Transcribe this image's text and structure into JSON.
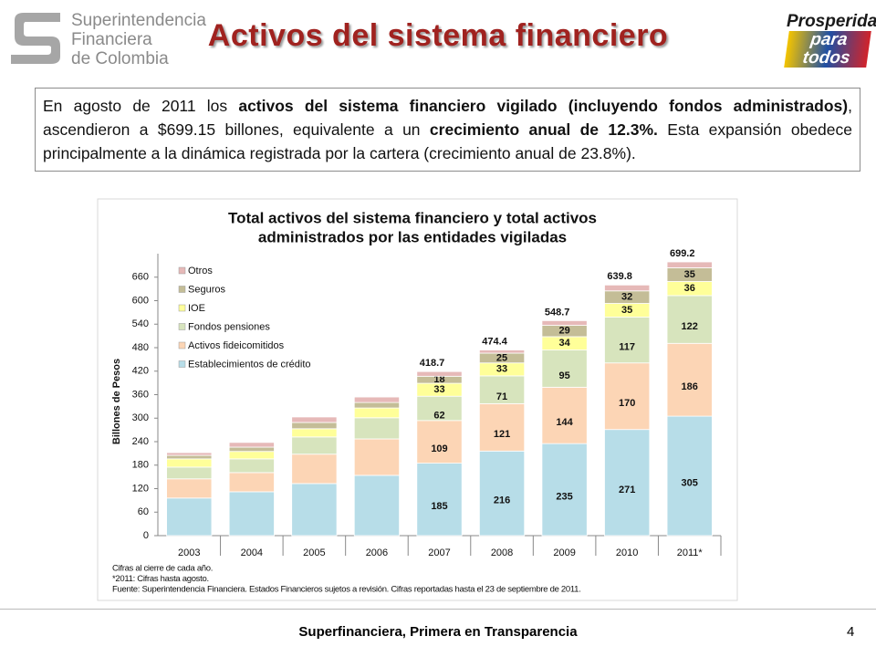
{
  "header": {
    "logo_lines": [
      "Superintendencia",
      "Financiera",
      "de Colombia"
    ],
    "title": "Activos del sistema financiero",
    "badge_lines": [
      "Prosperidad",
      "para todos"
    ]
  },
  "paragraph": [
    {
      "text": "En agosto de 2011 los ",
      "bold": false
    },
    {
      "text": "activos del sistema financiero vigilado (incluyendo fondos administrados)",
      "bold": true
    },
    {
      "text": ", ascendieron a $699.15 billones, equivalente a un ",
      "bold": false
    },
    {
      "text": "crecimiento anual de 12.3%.",
      "bold": true
    },
    {
      "text": " Esta expansión obedece principalmente a la dinámica registrada por la cartera (crecimiento anual de 23.8%).",
      "bold": false
    }
  ],
  "chart_data": {
    "type": "stacked_bar",
    "title_lines": [
      "Total activos del sistema financiero y total activos",
      "administrados por las entidades vigiladas"
    ],
    "y_label": "Billones de Pesos",
    "categories": [
      "2003",
      "2004",
      "2005",
      "2006",
      "2007",
      "2008",
      "2009",
      "2010",
      "2011*"
    ],
    "series": [
      {
        "name": "Establecimientos de crédito",
        "color": "#b7dde8",
        "values": [
          96,
          112,
          133,
          154,
          185,
          216,
          235,
          271,
          305
        ],
        "value_labels": [
          null,
          null,
          null,
          null,
          "185",
          "216",
          "235",
          "271",
          "305"
        ]
      },
      {
        "name": "Activos fideicomitidos",
        "color": "#fcd5b5",
        "values": [
          49,
          49,
          75,
          93,
          109,
          121,
          144,
          170,
          186
        ],
        "value_labels": [
          null,
          null,
          null,
          null,
          "109",
          "121",
          "144",
          "170",
          "186"
        ]
      },
      {
        "name": "Fondos pensiones",
        "color": "#d7e4bd",
        "values": [
          30,
          35,
          44,
          54,
          62,
          71,
          95,
          117,
          122
        ],
        "value_labels": [
          null,
          null,
          null,
          null,
          "62",
          "71",
          "95",
          "117",
          "122"
        ]
      },
      {
        "name": "IOE",
        "color": "#ffff99",
        "values": [
          21,
          19,
          21,
          25,
          33,
          33,
          34,
          35,
          36
        ],
        "value_labels": [
          null,
          null,
          null,
          null,
          "33",
          "33",
          "34",
          "35",
          "36"
        ]
      },
      {
        "name": "Seguros",
        "color": "#c4bd97",
        "values": [
          9,
          11,
          16,
          14,
          18,
          25,
          29,
          32,
          35
        ],
        "value_labels": [
          null,
          null,
          null,
          null,
          "18",
          "25",
          "29",
          "32",
          "35"
        ]
      },
      {
        "name": "Otros",
        "color": "#e6b9b8",
        "values": [
          7,
          12,
          14,
          14,
          12,
          8,
          12,
          15,
          15
        ],
        "value_labels": [
          null,
          null,
          null,
          null,
          null,
          null,
          null,
          null,
          null
        ]
      }
    ],
    "totals": [
      null,
      null,
      null,
      null,
      418.7,
      474.4,
      548.7,
      639.8,
      699.2
    ],
    "ylim": [
      0,
      720
    ],
    "yticks": [
      0,
      60,
      120,
      180,
      240,
      300,
      360,
      420,
      480,
      540,
      600,
      660
    ],
    "legend": "top-left",
    "notes": [
      "Cifras al cierre de cada año.",
      "*2011: Cifras hasta agosto.",
      "Fuente: Superintendencia Financiera. Estados Financieros sujetos a revisión. Cifras reportadas hasta el 23 de septiembre de 2011."
    ]
  },
  "footer": {
    "text": "Superfinanciera, Primera en Transparencia",
    "page": "4"
  }
}
